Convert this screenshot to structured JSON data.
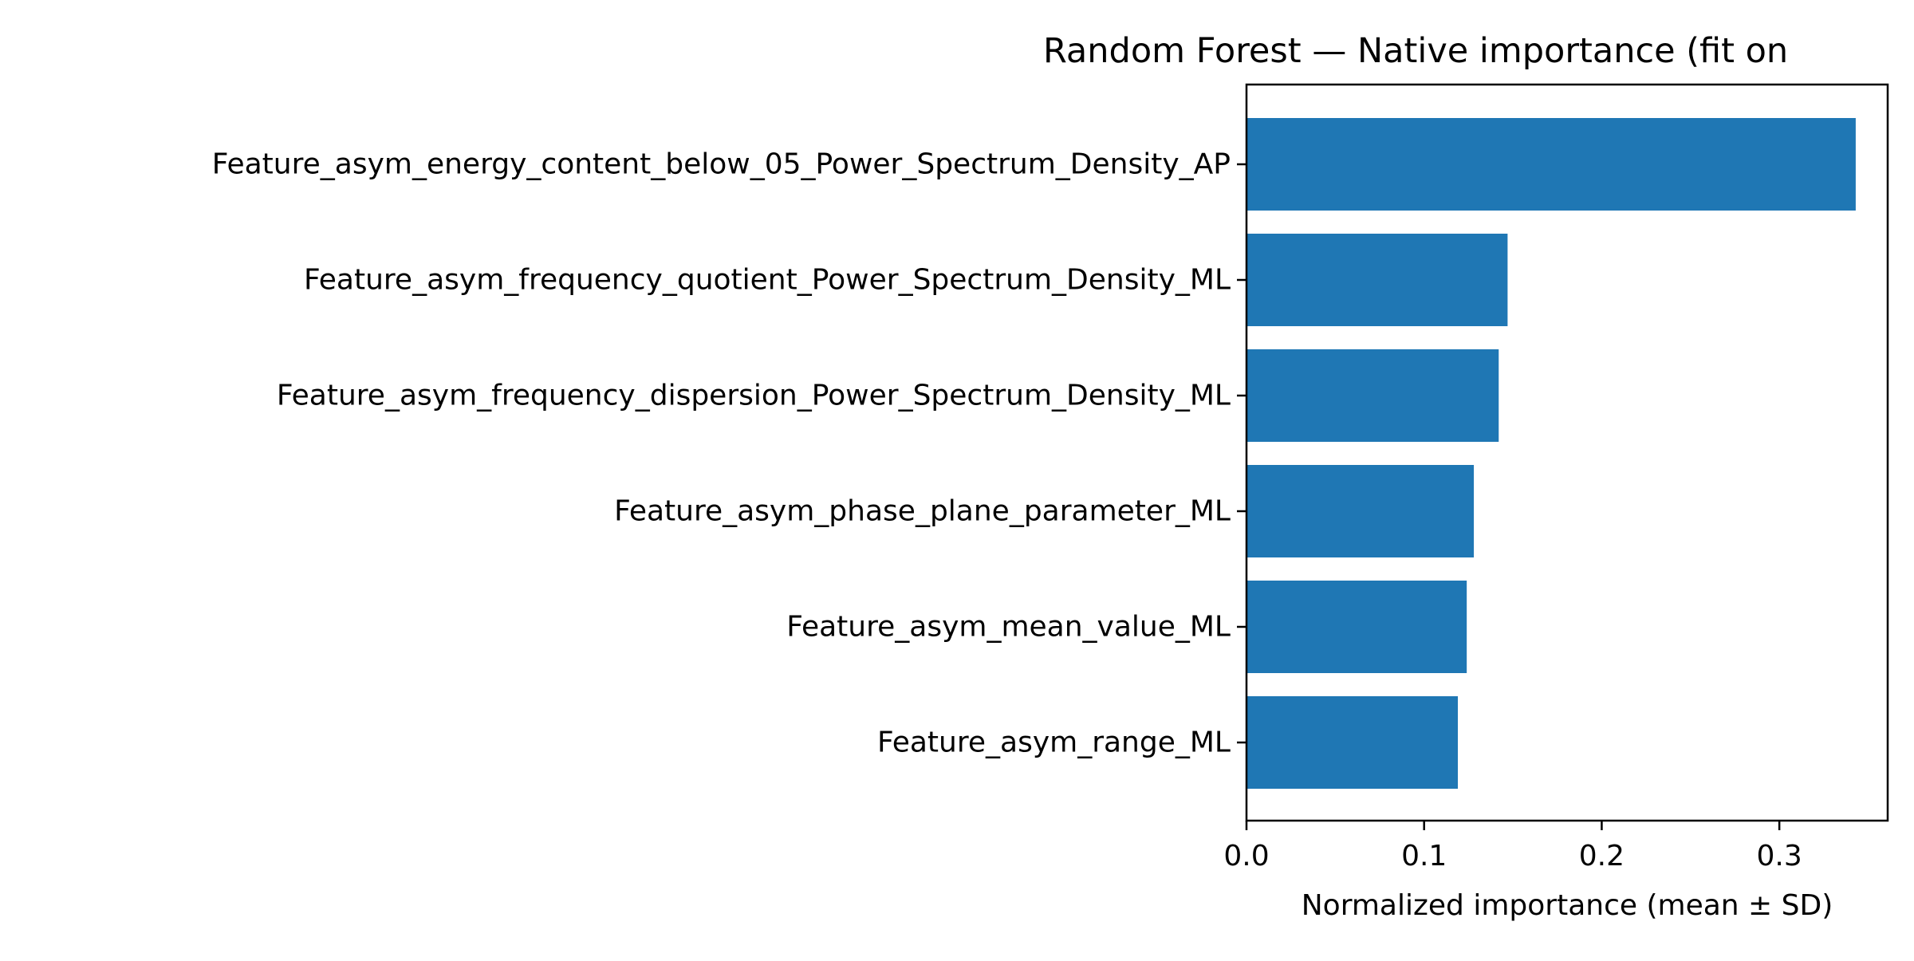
{
  "chart_data": {
    "type": "bar",
    "orientation": "horizontal",
    "title": "Random Forest — Native importance (fit on",
    "xlabel": "Normalized importance (mean ± SD)",
    "ylabel": "",
    "categories": [
      "Feature_asym_energy_content_below_05_Power_Spectrum_Density_AP",
      "Feature_asym_frequency_quotient_Power_Spectrum_Density_ML",
      "Feature_asym_frequency_dispersion_Power_Spectrum_Density_ML",
      "Feature_asym_phase_plane_parameter_ML",
      "Feature_asym_mean_value_ML",
      "Feature_asym_range_ML"
    ],
    "values": [
      0.343,
      0.147,
      0.142,
      0.128,
      0.124,
      0.119
    ],
    "xlim": [
      0,
      0.361
    ],
    "xticks": [
      0.0,
      0.1,
      0.2,
      0.3
    ],
    "xtick_labels": [
      "0.0",
      "0.1",
      "0.2",
      "0.3"
    ],
    "bar_color": "#1f77b4",
    "grid": false,
    "legend": "none"
  }
}
